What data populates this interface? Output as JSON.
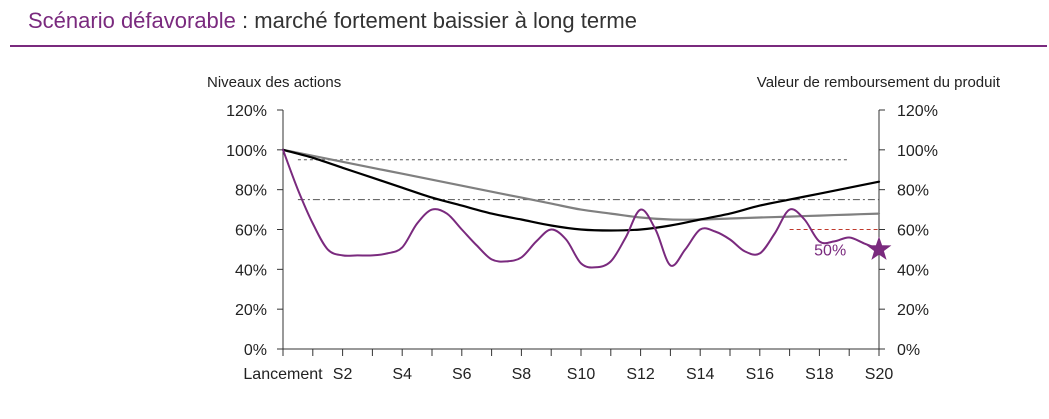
{
  "title": {
    "part1": "Scénario défavorable",
    "separator": " : ",
    "part2": "marché fortement baissier à long terme"
  },
  "colors": {
    "accent": "#7a2a7e",
    "black_line": "#000000",
    "grey_line": "#808080",
    "reference_lines": "#555555",
    "red_dashed": "#c0392b"
  },
  "chart_data": {
    "type": "line",
    "y_left_label": "Niveaux des actions",
    "y_right_label": "Valeur de remboursement du produit",
    "y_ticks": [
      "0%",
      "20%",
      "40%",
      "60%",
      "80%",
      "100%",
      "120%"
    ],
    "ylim": [
      0,
      120
    ],
    "x_ticks": [
      {
        "x": 0,
        "label": "Lancement"
      },
      {
        "x": 2,
        "label": "S2"
      },
      {
        "x": 4,
        "label": "S4"
      },
      {
        "x": 6,
        "label": "S6"
      },
      {
        "x": 8,
        "label": "S8"
      },
      {
        "x": 10,
        "label": "S10"
      },
      {
        "x": 12,
        "label": "S12"
      },
      {
        "x": 14,
        "label": "S14"
      },
      {
        "x": 16,
        "label": "S16"
      },
      {
        "x": 18,
        "label": "S18"
      },
      {
        "x": 20,
        "label": "S20"
      }
    ],
    "xlim": [
      0,
      20
    ],
    "series": [
      {
        "color": "#000000",
        "width": 2.2,
        "points": [
          [
            0,
            100
          ],
          [
            1,
            96
          ],
          [
            2,
            91
          ],
          [
            3,
            86
          ],
          [
            4,
            81
          ],
          [
            5,
            76
          ],
          [
            6,
            72
          ],
          [
            7,
            68
          ],
          [
            8,
            65
          ],
          [
            9,
            62
          ],
          [
            10,
            60
          ],
          [
            11,
            59.5
          ],
          [
            12,
            60
          ],
          [
            13,
            62
          ],
          [
            14,
            65
          ],
          [
            15,
            68
          ],
          [
            16,
            72
          ],
          [
            17,
            75
          ],
          [
            18,
            78
          ],
          [
            19,
            81
          ],
          [
            20,
            84
          ]
        ]
      },
      {
        "color": "#808080",
        "width": 2.2,
        "points": [
          [
            0,
            100
          ],
          [
            1,
            97
          ],
          [
            2,
            94
          ],
          [
            3,
            91
          ],
          [
            4,
            88
          ],
          [
            5,
            85
          ],
          [
            6,
            82
          ],
          [
            7,
            79
          ],
          [
            8,
            76
          ],
          [
            9,
            73
          ],
          [
            10,
            70
          ],
          [
            11,
            68
          ],
          [
            12,
            66
          ],
          [
            13,
            65
          ],
          [
            14,
            65
          ],
          [
            15,
            65.5
          ],
          [
            16,
            66
          ],
          [
            17,
            66.5
          ],
          [
            18,
            67
          ],
          [
            19,
            67.5
          ],
          [
            20,
            68
          ]
        ]
      },
      {
        "color": "#7a2a7e",
        "width": 2,
        "points": [
          [
            0,
            100
          ],
          [
            0.5,
            80
          ],
          [
            1,
            63
          ],
          [
            1.5,
            50
          ],
          [
            2,
            47
          ],
          [
            2.5,
            47
          ],
          [
            3,
            47
          ],
          [
            3.5,
            48
          ],
          [
            4,
            51
          ],
          [
            4.5,
            63
          ],
          [
            5,
            70
          ],
          [
            5.5,
            68
          ],
          [
            6,
            60
          ],
          [
            6.5,
            52
          ],
          [
            7,
            45
          ],
          [
            7.5,
            44
          ],
          [
            8,
            46
          ],
          [
            8.5,
            54
          ],
          [
            9,
            60
          ],
          [
            9.5,
            55
          ],
          [
            10,
            43
          ],
          [
            10.5,
            41
          ],
          [
            11,
            44
          ],
          [
            11.5,
            56
          ],
          [
            12,
            70
          ],
          [
            12.5,
            60
          ],
          [
            13,
            42
          ],
          [
            13.5,
            50
          ],
          [
            14,
            60
          ],
          [
            14.5,
            59
          ],
          [
            15,
            55
          ],
          [
            15.5,
            49
          ],
          [
            16,
            48
          ],
          [
            16.5,
            58
          ],
          [
            17,
            70
          ],
          [
            17.5,
            65
          ],
          [
            18,
            54
          ],
          [
            18.5,
            54
          ],
          [
            19,
            56
          ],
          [
            19.5,
            53
          ],
          [
            20,
            50
          ]
        ]
      }
    ],
    "reference_lines": [
      {
        "y": 95,
        "from": 0.5,
        "to": 19,
        "style": "dotted",
        "color": "#555555"
      },
      {
        "y": 75,
        "from": 0.5,
        "to": 20,
        "style": "dashdot",
        "color": "#555555"
      },
      {
        "y": 60,
        "from": 17,
        "to": 20,
        "style": "dashed",
        "color": "#c0392b"
      }
    ],
    "end_marker": {
      "x": 20,
      "y": 50,
      "shape": "star",
      "color": "#7a2a7e"
    },
    "annotation": {
      "text": "50%",
      "x": 19,
      "y": 50
    }
  }
}
